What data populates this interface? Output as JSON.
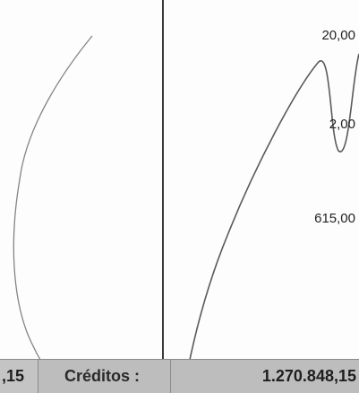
{
  "amounts": {
    "a1": "20,00",
    "a2": "2,00",
    "a3": "615,00"
  },
  "totals": {
    "prev_value_fragment": ",15",
    "credit_label": "Créditos :",
    "credit_value": "1.270.848,15"
  },
  "colors": {
    "ink": "#555555",
    "totals_bar": "#bdbdbd"
  }
}
